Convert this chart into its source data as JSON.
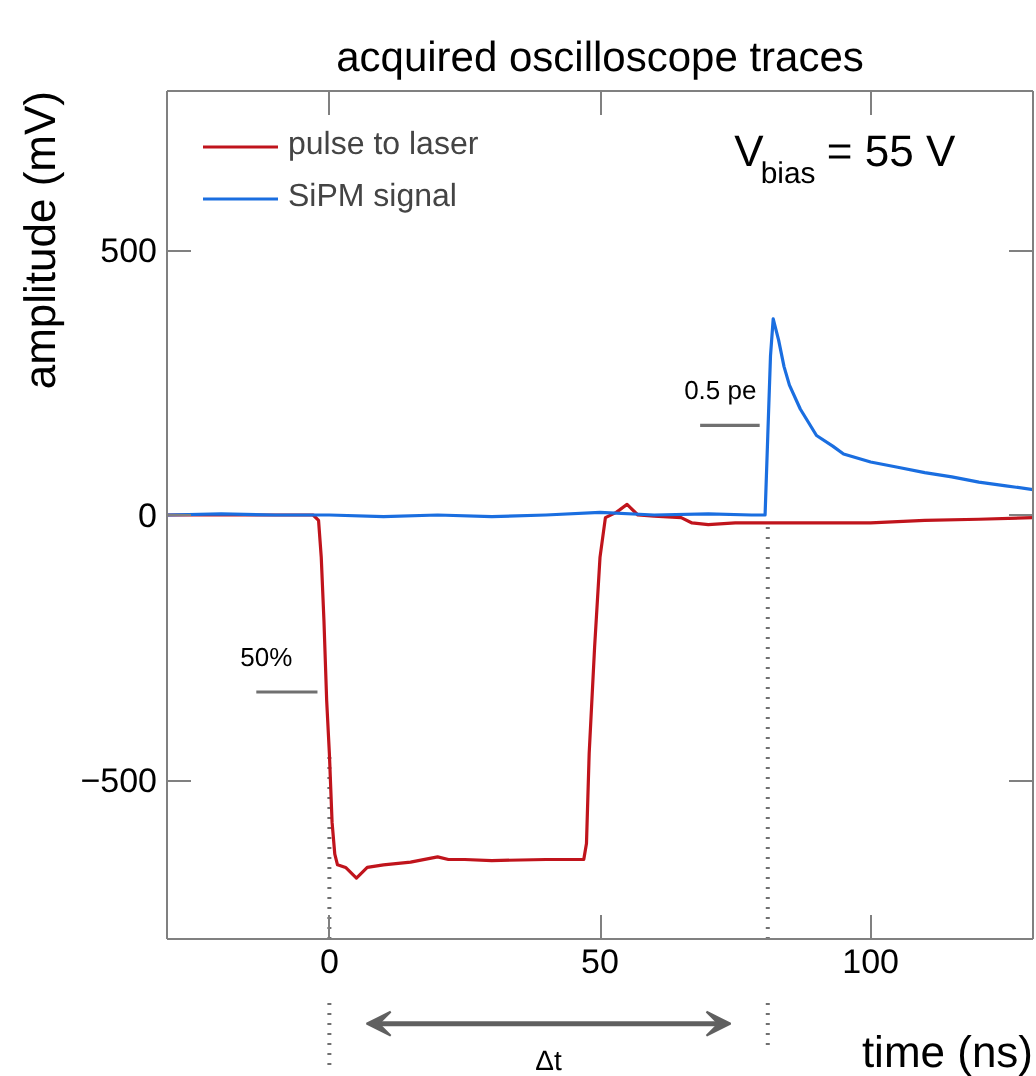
{
  "chart_data": {
    "type": "line",
    "title": "acquired oscilloscope traces",
    "xlabel": "time (ns)",
    "ylabel": "amplitude (mV)",
    "xlim": [
      -30,
      130
    ],
    "ylim": [
      -800,
      800
    ],
    "xticks": [
      0,
      50,
      100
    ],
    "yticks": [
      -500,
      0,
      500
    ],
    "legend": "top left",
    "line_style": "solid",
    "marker": "none",
    "series": [
      {
        "name": "pulse to laser",
        "color": "#c0141c",
        "x": [
          -30,
          -20,
          -10,
          -3,
          -2,
          -1.5,
          -1,
          -0.5,
          0,
          0.5,
          1,
          1.5,
          3,
          5,
          7,
          10,
          15,
          20,
          22,
          25,
          30,
          40,
          47,
          47.5,
          48,
          49,
          50,
          51,
          53,
          55,
          57,
          60,
          65,
          67,
          70,
          75,
          80,
          90,
          100,
          110,
          120,
          130
        ],
        "values": [
          0,
          0,
          0,
          0,
          -10,
          -80,
          -200,
          -350,
          -450,
          -580,
          -640,
          -660,
          -665,
          -685,
          -665,
          -660,
          -655,
          -645,
          -650,
          -650,
          -652,
          -650,
          -650,
          -620,
          -450,
          -250,
          -80,
          -5,
          5,
          20,
          0,
          -2,
          -5,
          -15,
          -18,
          -15,
          -15,
          -15,
          -15,
          -10,
          -8,
          -5
        ]
      },
      {
        "name": "SiPM signal",
        "color": "#1a6ee0",
        "x": [
          -30,
          -20,
          -10,
          0,
          10,
          20,
          30,
          40,
          50,
          60,
          70,
          78,
          80.5,
          81,
          81.5,
          82,
          83,
          84,
          85,
          87,
          90,
          93,
          95,
          100,
          105,
          110,
          115,
          120,
          125,
          130
        ],
        "values": [
          0,
          2,
          0,
          0,
          -3,
          0,
          -3,
          0,
          5,
          0,
          2,
          0,
          0,
          150,
          300,
          370,
          330,
          280,
          245,
          200,
          150,
          130,
          115,
          100,
          90,
          80,
          72,
          62,
          55,
          48
        ]
      },
      {
        "type": "line",
        "color": "#707070",
        "x": [
          -13.5,
          -2.2
        ],
        "values": [
          -334,
          -334
        ]
      },
      {
        "type": "line",
        "color": "#707070",
        "x": [
          68.5,
          79.5
        ],
        "values": [
          169,
          169
        ]
      }
    ],
    "ref_lines": [
      {
        "axis": "x",
        "value": 0,
        "label": null,
        "color": "#707070",
        "line_style": "dotted"
      },
      {
        "axis": "x",
        "value": 81,
        "label": null,
        "color": "#707070",
        "line_style": "dotted"
      }
    ],
    "annotations": [
      "V$_{bias}$ = 55 V",
      {
        "text": "50%",
        "x": -13.5,
        "y": -334
      },
      {
        "text": "0.5 pe",
        "x": 68.5,
        "y": 169
      },
      "Δt"
    ]
  }
}
